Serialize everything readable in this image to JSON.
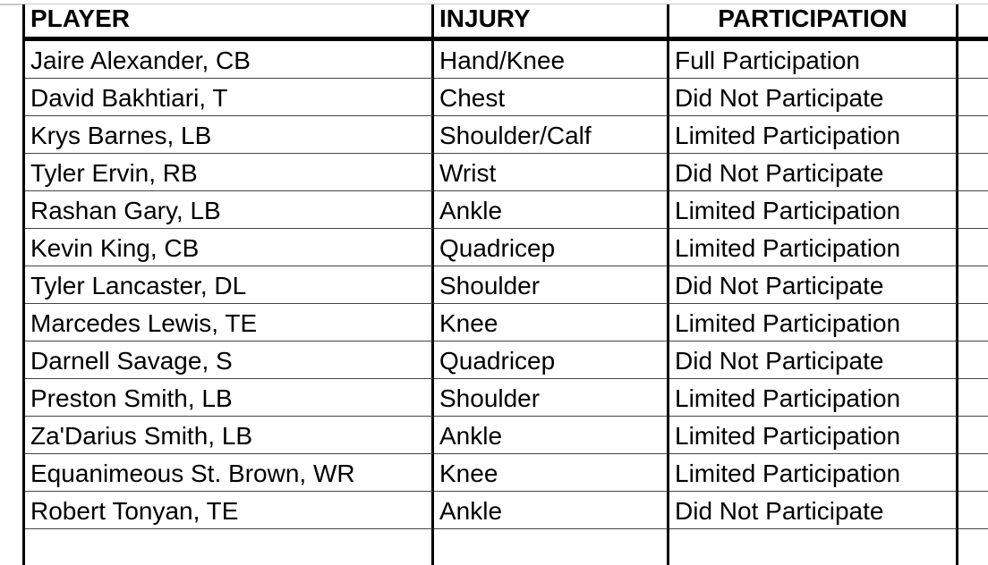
{
  "page": {
    "background": "#ffffff",
    "top_gridline_color": "#c9c9c9",
    "border_color": "#000000",
    "row_divider_color": "#454545",
    "text_color": "#000000"
  },
  "table": {
    "headers": [
      {
        "label": "PLAYER",
        "align": "left"
      },
      {
        "label": "INJURY",
        "align": "left"
      },
      {
        "label": "PARTICIPATION",
        "align": "center"
      },
      {
        "label": "",
        "align": "left"
      }
    ],
    "rows": [
      {
        "player": "Jaire Alexander, CB",
        "injury": "Hand/Knee",
        "participation": "Full Participation"
      },
      {
        "player": "David Bakhtiari, T",
        "injury": "Chest",
        "participation": "Did Not Participate"
      },
      {
        "player": "Krys Barnes, LB",
        "injury": "Shoulder/Calf",
        "participation": "Limited Participation"
      },
      {
        "player": "Tyler Ervin, RB",
        "injury": "Wrist",
        "participation": "Did Not Participate"
      },
      {
        "player": "Rashan Gary, LB",
        "injury": "Ankle",
        "participation": "Limited Participation"
      },
      {
        "player": "Kevin King, CB",
        "injury": "Quadricep",
        "participation": "Limited Participation"
      },
      {
        "player": "Tyler Lancaster, DL",
        "injury": "Shoulder",
        "participation": "Did Not Participate"
      },
      {
        "player": "Marcedes Lewis, TE",
        "injury": "Knee",
        "participation": "Limited Participation"
      },
      {
        "player": "Darnell Savage, S",
        "injury": "Quadricep",
        "participation": "Did Not Participate"
      },
      {
        "player": "Preston Smith, LB",
        "injury": "Shoulder",
        "participation": "Limited Participation"
      },
      {
        "player": "Za'Darius Smith, LB",
        "injury": "Ankle",
        "participation": "Limited Participation"
      },
      {
        "player": "Equanimeous St. Brown, WR",
        "injury": "Knee",
        "participation": "Limited Participation"
      },
      {
        "player": "Robert Tonyan, TE",
        "injury": "Ankle",
        "participation": "Did Not Participate"
      }
    ],
    "trailing_empty_row": true
  }
}
